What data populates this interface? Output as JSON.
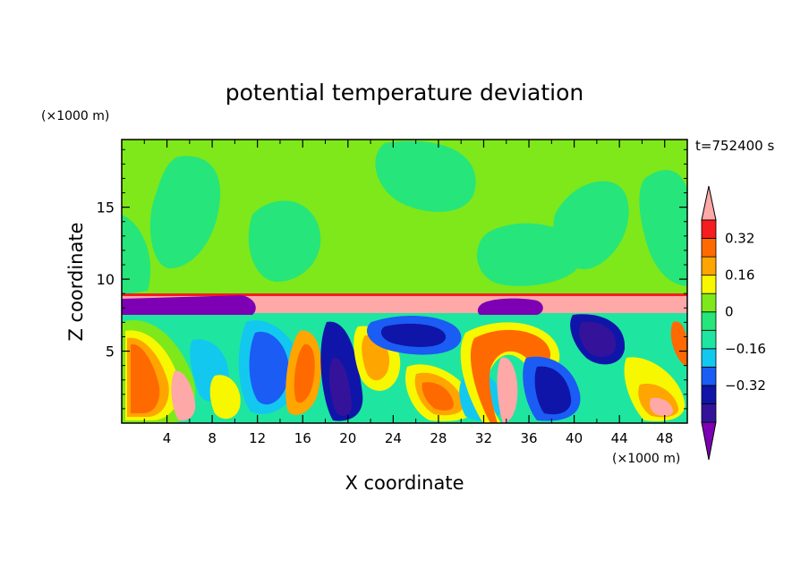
{
  "chart_data": {
    "type": "heatmap",
    "title": "potential temperature deviation",
    "xlabel": "X coordinate",
    "ylabel": "Z coordinate",
    "x_unit": "(×1000 m)",
    "y_unit": "(×1000 m)",
    "time_label": "t=752400 s",
    "xlim": [
      0,
      50
    ],
    "ylim": [
      0,
      19.7
    ],
    "x_ticks": [
      "4",
      "8",
      "12",
      "16",
      "20",
      "24",
      "28",
      "32",
      "36",
      "40",
      "44",
      "48"
    ],
    "y_ticks": [
      "5",
      "10",
      "15"
    ],
    "colorbar": {
      "levels": [
        -0.48,
        -0.4,
        -0.32,
        -0.24,
        -0.16,
        -0.08,
        0,
        0.08,
        0.16,
        0.24,
        0.32,
        0.4
      ],
      "colors": [
        "#7d00b4",
        "#34139a",
        "#0f15a8",
        "#1b5cf5",
        "#13c8ef",
        "#1ee6a0",
        "#26e57a",
        "#7ee81a",
        "#f7f700",
        "#ffa500",
        "#ff6a00",
        "#f51d1d",
        "#ffa8a8"
      ],
      "labels": [
        "0.32",
        "0.16",
        "0",
        "−0.16",
        "−0.32"
      ],
      "label_values": [
        0.32,
        0.16,
        0,
        -0.16,
        -0.32
      ]
    },
    "field_regions": [
      {
        "zone": "upper layer z≈9–19.7",
        "value": 0.04
      },
      {
        "zone": "patches in upper layer",
        "value": -0.04
      },
      {
        "zone": "inversion strip z≈7.8–9",
        "value": 0.45
      },
      {
        "zone": "cold cap x≈0–10, x≈32–38",
        "value": -0.5
      },
      {
        "zone": "turbulent boundary layer z≈0–7.8",
        "value": "mixed −0.5…0.45"
      }
    ]
  }
}
